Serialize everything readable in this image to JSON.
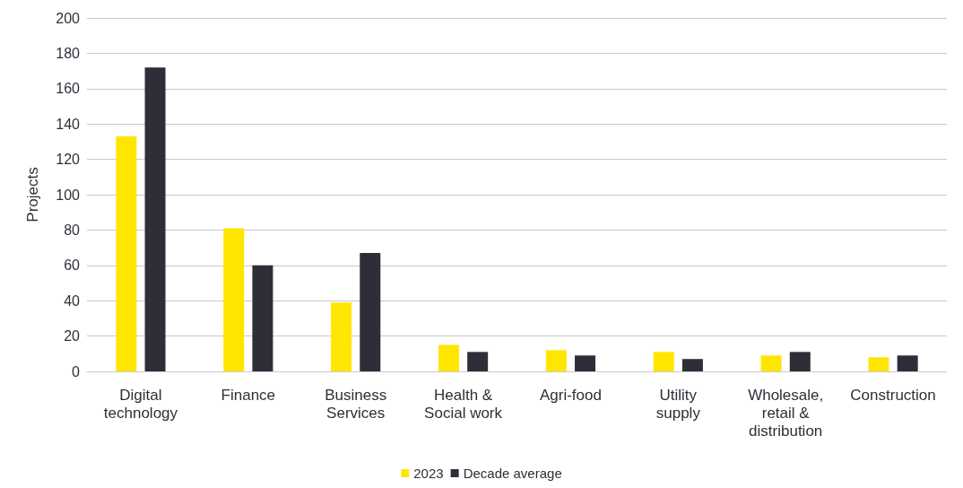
{
  "chart_data": {
    "type": "bar",
    "ylabel": "Projects",
    "categories": [
      "Digital\ntechnology",
      "Finance",
      "Business\nServices",
      "Health &\nSocial work",
      "Agri-food",
      "Utility\nsupply",
      "Wholesale,\nretail &\ndistribution",
      "Construction"
    ],
    "series": [
      {
        "name": "2023",
        "color": "#ffe600",
        "values": [
          133,
          81,
          39,
          15,
          12,
          11,
          9,
          8
        ]
      },
      {
        "name": "Decade average",
        "color": "#2e2e38",
        "values": [
          172,
          60,
          67,
          11,
          9,
          7,
          11,
          9
        ]
      }
    ],
    "ylim": [
      0,
      200
    ],
    "yticks": [
      0,
      20,
      40,
      60,
      80,
      100,
      120,
      140,
      160,
      180,
      200
    ],
    "grid": "y",
    "legend": "bottom"
  }
}
